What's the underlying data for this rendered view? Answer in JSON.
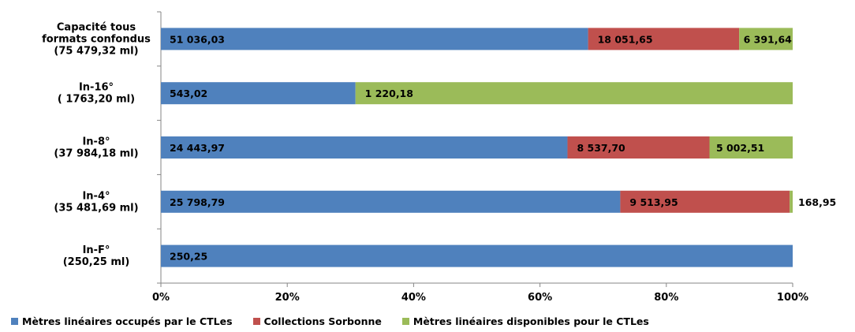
{
  "chart_data": {
    "type": "bar",
    "orientation": "horizontal",
    "stacked": "percent",
    "categories": [
      "Capacité tous formats confondus (75 479,32 ml)",
      "In-16° ( 1763,20 ml)",
      "In-8° (37 984,18 ml)",
      "In-4° (35 481,69 ml)",
      "In-F° (250,25 ml)"
    ],
    "category_lines": [
      [
        "Capacité tous",
        "formats confondus",
        "(75 479,32 ml)"
      ],
      [
        "In-16°",
        "( 1763,20 ml)"
      ],
      [
        "In-8°",
        "(37 984,18 ml)"
      ],
      [
        "In-4°",
        "(35 481,69 ml)"
      ],
      [
        "In-F°",
        "(250,25 ml)"
      ]
    ],
    "series": [
      {
        "name": "Mètres linéaires occupés par le CTLes",
        "color": "#4f81bd",
        "values": [
          51036.03,
          543.02,
          24443.97,
          25798.79,
          250.25
        ],
        "labels": [
          "51 036,03",
          "543,02",
          "24 443,97",
          "25 798,79",
          "250,25"
        ]
      },
      {
        "name": "Collections Sorbonne",
        "color": "#c0504d",
        "values": [
          18051.65,
          0,
          8537.7,
          9513.95,
          0
        ],
        "labels": [
          "18 051,65",
          "",
          "8 537,70",
          "9 513,95",
          ""
        ]
      },
      {
        "name": "Mètres linéaires disponibles pour le CTLes",
        "color": "#9bbb59",
        "values": [
          6391.64,
          1220.18,
          5002.51,
          168.95,
          0
        ],
        "labels": [
          "6 391,64",
          "1 220,18",
          "5 002,51",
          "168,95",
          ""
        ]
      }
    ],
    "x_ticks": [
      "0%",
      "20%",
      "40%",
      "60%",
      "80%",
      "100%"
    ],
    "xlim": [
      0,
      100
    ],
    "grid": false,
    "legend_position": "bottom"
  }
}
